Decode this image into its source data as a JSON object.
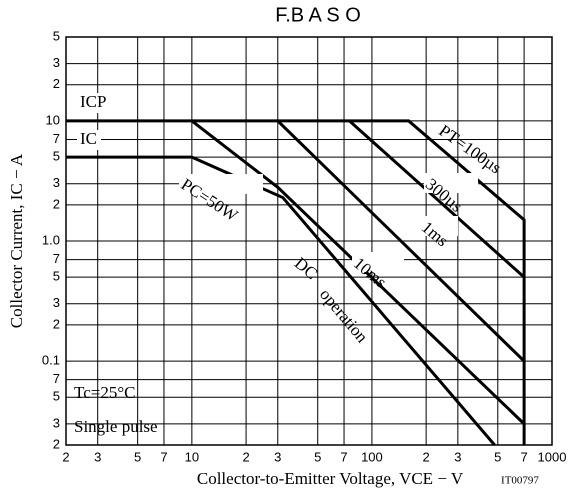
{
  "chart_data": {
    "type": "line",
    "title": "F.B A S O",
    "x_label": "Collector-to-Emitter Voltage, VCE − V",
    "y_label": "Collector Current, IC − A",
    "log_x": true,
    "log_y": true,
    "grid": true,
    "color": "#000000",
    "xlim": [
      2,
      1000
    ],
    "ylim": [
      0.02,
      50
    ],
    "xticks": [
      2,
      3,
      5,
      7,
      10,
      {
        "value": 20,
        "label": "2"
      },
      {
        "value": 30,
        "label": "3"
      },
      {
        "value": 50,
        "label": "5"
      },
      {
        "value": 70,
        "label": "7"
      },
      100,
      {
        "value": 200,
        "label": "2"
      },
      {
        "value": 300,
        "label": "3"
      },
      {
        "value": 500,
        "label": "5"
      },
      {
        "value": 700,
        "label": "7"
      },
      1000
    ],
    "yticks": [
      {
        "value": 0.02,
        "label": "2"
      },
      {
        "value": 0.03,
        "label": "3"
      },
      {
        "value": 0.05,
        "label": "5"
      },
      {
        "value": 0.07,
        "label": "7"
      },
      0.1,
      {
        "value": 0.2,
        "label": "2"
      },
      {
        "value": 0.3,
        "label": "3"
      },
      {
        "value": 0.5,
        "label": "5"
      },
      {
        "value": 0.7,
        "label": "7"
      },
      {
        "value": 1,
        "label": "1.0"
      },
      2,
      3,
      5,
      7,
      10,
      {
        "value": 20,
        "label": "2"
      },
      {
        "value": 30,
        "label": "3"
      },
      {
        "value": 50,
        "label": "5"
      }
    ],
    "series": [
      {
        "name": "ICP",
        "x": [
          2,
          160,
          700,
          700
        ],
        "values": [
          10,
          10,
          1.5,
          0.02
        ]
      },
      {
        "name": "IC",
        "x": [
          2,
          10
        ],
        "values": [
          5,
          5
        ]
      },
      {
        "name": "PC=50W",
        "x": [
          10,
          32,
          480
        ],
        "values": [
          5,
          2.3,
          0.02
        ]
      },
      {
        "name": "300µs",
        "x": [
          75,
          700
        ],
        "values": [
          10,
          0.5
        ]
      },
      {
        "name": "1ms",
        "x": [
          30,
          700
        ],
        "values": [
          10,
          0.1
        ]
      },
      {
        "name": "10ms",
        "x": [
          10,
          30,
          700
        ],
        "values": [
          10,
          2.8,
          0.03
        ]
      }
    ],
    "annotations": [
      "PT=100µs",
      "DC",
      "operation",
      "Tc=25°C",
      "Single pulse",
      "IT00797"
    ]
  }
}
